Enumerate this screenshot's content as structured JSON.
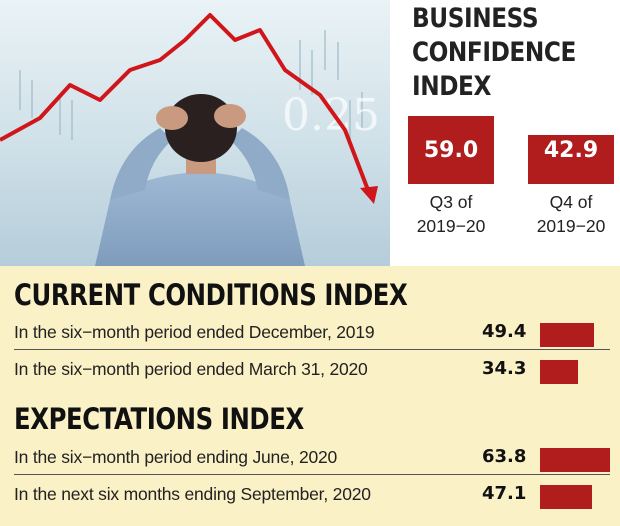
{
  "chart_data": [
    {
      "type": "bar",
      "title": "BUSINESS CONFIDENCE INDEX",
      "title_lines": [
        "BUSINESS",
        "CONFIDENCE",
        "INDEX"
      ],
      "categories": [
        "Q3 of 2019-20",
        "Q4 of 2019-20"
      ],
      "category_lines": [
        [
          "Q3 of",
          "2019−20"
        ],
        [
          "Q4 of",
          "2019−20"
        ]
      ],
      "values": [
        59.0,
        42.9
      ],
      "value_labels": [
        "59.0",
        "42.9"
      ],
      "color": "#b11c1c"
    },
    {
      "type": "bar",
      "title": "CURRENT CONDITIONS INDEX",
      "categories": [
        "In the six-month period ended December, 2019",
        "In the six-month period ended March 31, 2020"
      ],
      "values": [
        49.4,
        34.3
      ],
      "value_labels": [
        "49.4",
        "34.3"
      ],
      "color": "#b11c1c"
    },
    {
      "type": "bar",
      "title": "EXPECTATIONS INDEX",
      "categories": [
        "In the six-month period ending June, 2020",
        "In the next six months ending September, 2020"
      ],
      "values": [
        63.8,
        47.1
      ],
      "value_labels": [
        "63.8",
        "47.1"
      ],
      "color": "#b11c1c"
    }
  ],
  "rows_display": {
    "current": [
      "In the six−month period ended December, 2019",
      "In the six−month period ended March 31, 2020"
    ],
    "expectations": [
      "In the six−month period ending June, 2020",
      "In the next six months ending September, 2020"
    ]
  },
  "photo_ticker_text": "0.25",
  "colors": {
    "bar": "#b11c1c",
    "panel": "#fbf1c6"
  }
}
